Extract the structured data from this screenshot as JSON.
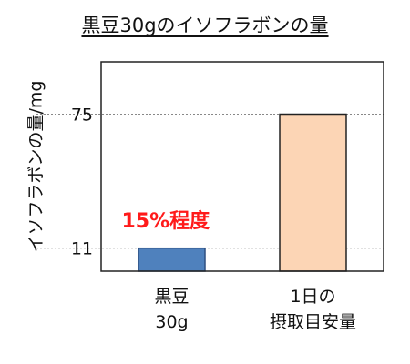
{
  "chart_data": {
    "type": "bar",
    "title": "黒豆30gのイソフラボンの量",
    "ylabel": "イソフラボンの量/mg",
    "xlabel": "",
    "categories": [
      [
        "黒豆",
        "30g"
      ],
      [
        "1日の",
        "摂取目安量"
      ]
    ],
    "values": [
      11,
      75
    ],
    "yticks": [
      11,
      75
    ],
    "ylim": [
      0,
      100
    ],
    "grid": "dotted reference lines at tick values",
    "annotation": {
      "text": "15%程度",
      "color": "#ff1a1a"
    },
    "colors": {
      "bars": [
        "#4f81bd",
        "#fcd5b5"
      ],
      "bar_borders": [
        "#2f4f80",
        "#222222"
      ],
      "axis": "#222222",
      "ref_lines": "#888888"
    }
  }
}
